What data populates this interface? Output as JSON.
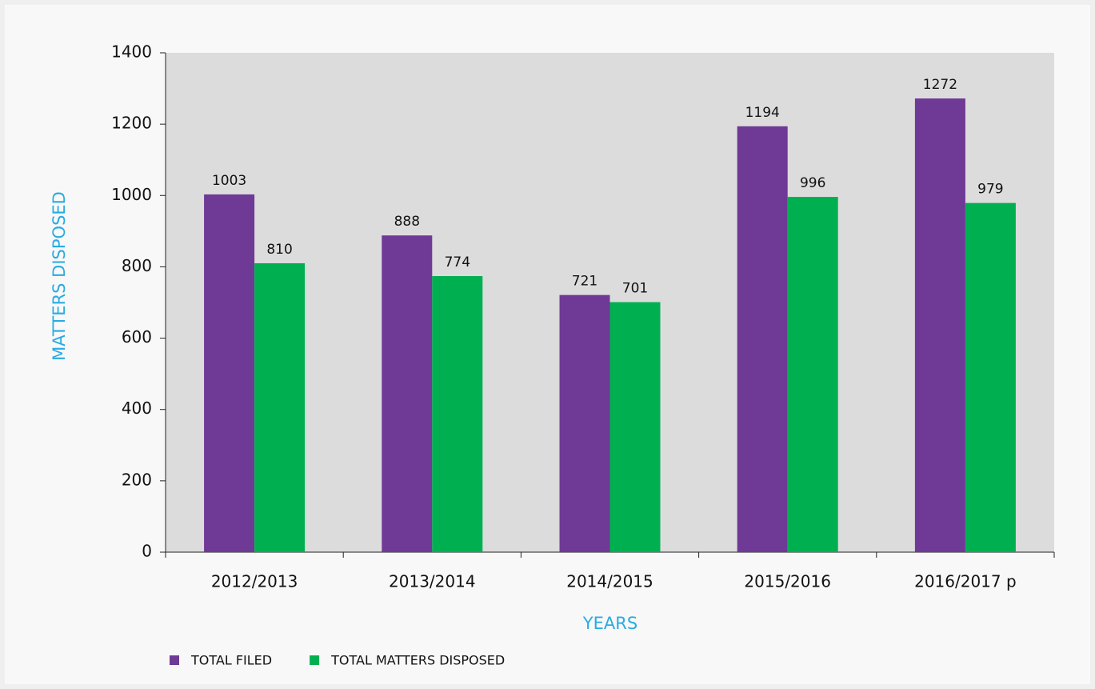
{
  "chart_data": {
    "type": "bar",
    "categories": [
      "2012/2013",
      "2013/2014",
      "2014/2015",
      "2015/2016",
      "2016/2017 p"
    ],
    "series": [
      {
        "name": "TOTAL FILED",
        "color": "#6f3996",
        "values": [
          1003,
          888,
          721,
          1194,
          1272
        ]
      },
      {
        "name": "TOTAL MATTERS DISPOSED",
        "color": "#00b050",
        "values": [
          810,
          774,
          701,
          996,
          979
        ]
      }
    ],
    "xlabel": "YEARS",
    "ylabel": "MATTERS DISPOSED",
    "ylim": [
      0,
      1400
    ],
    "yticks": [
      0,
      200,
      400,
      600,
      800,
      1000,
      1200,
      1400
    ],
    "legend": "bottom-left"
  }
}
